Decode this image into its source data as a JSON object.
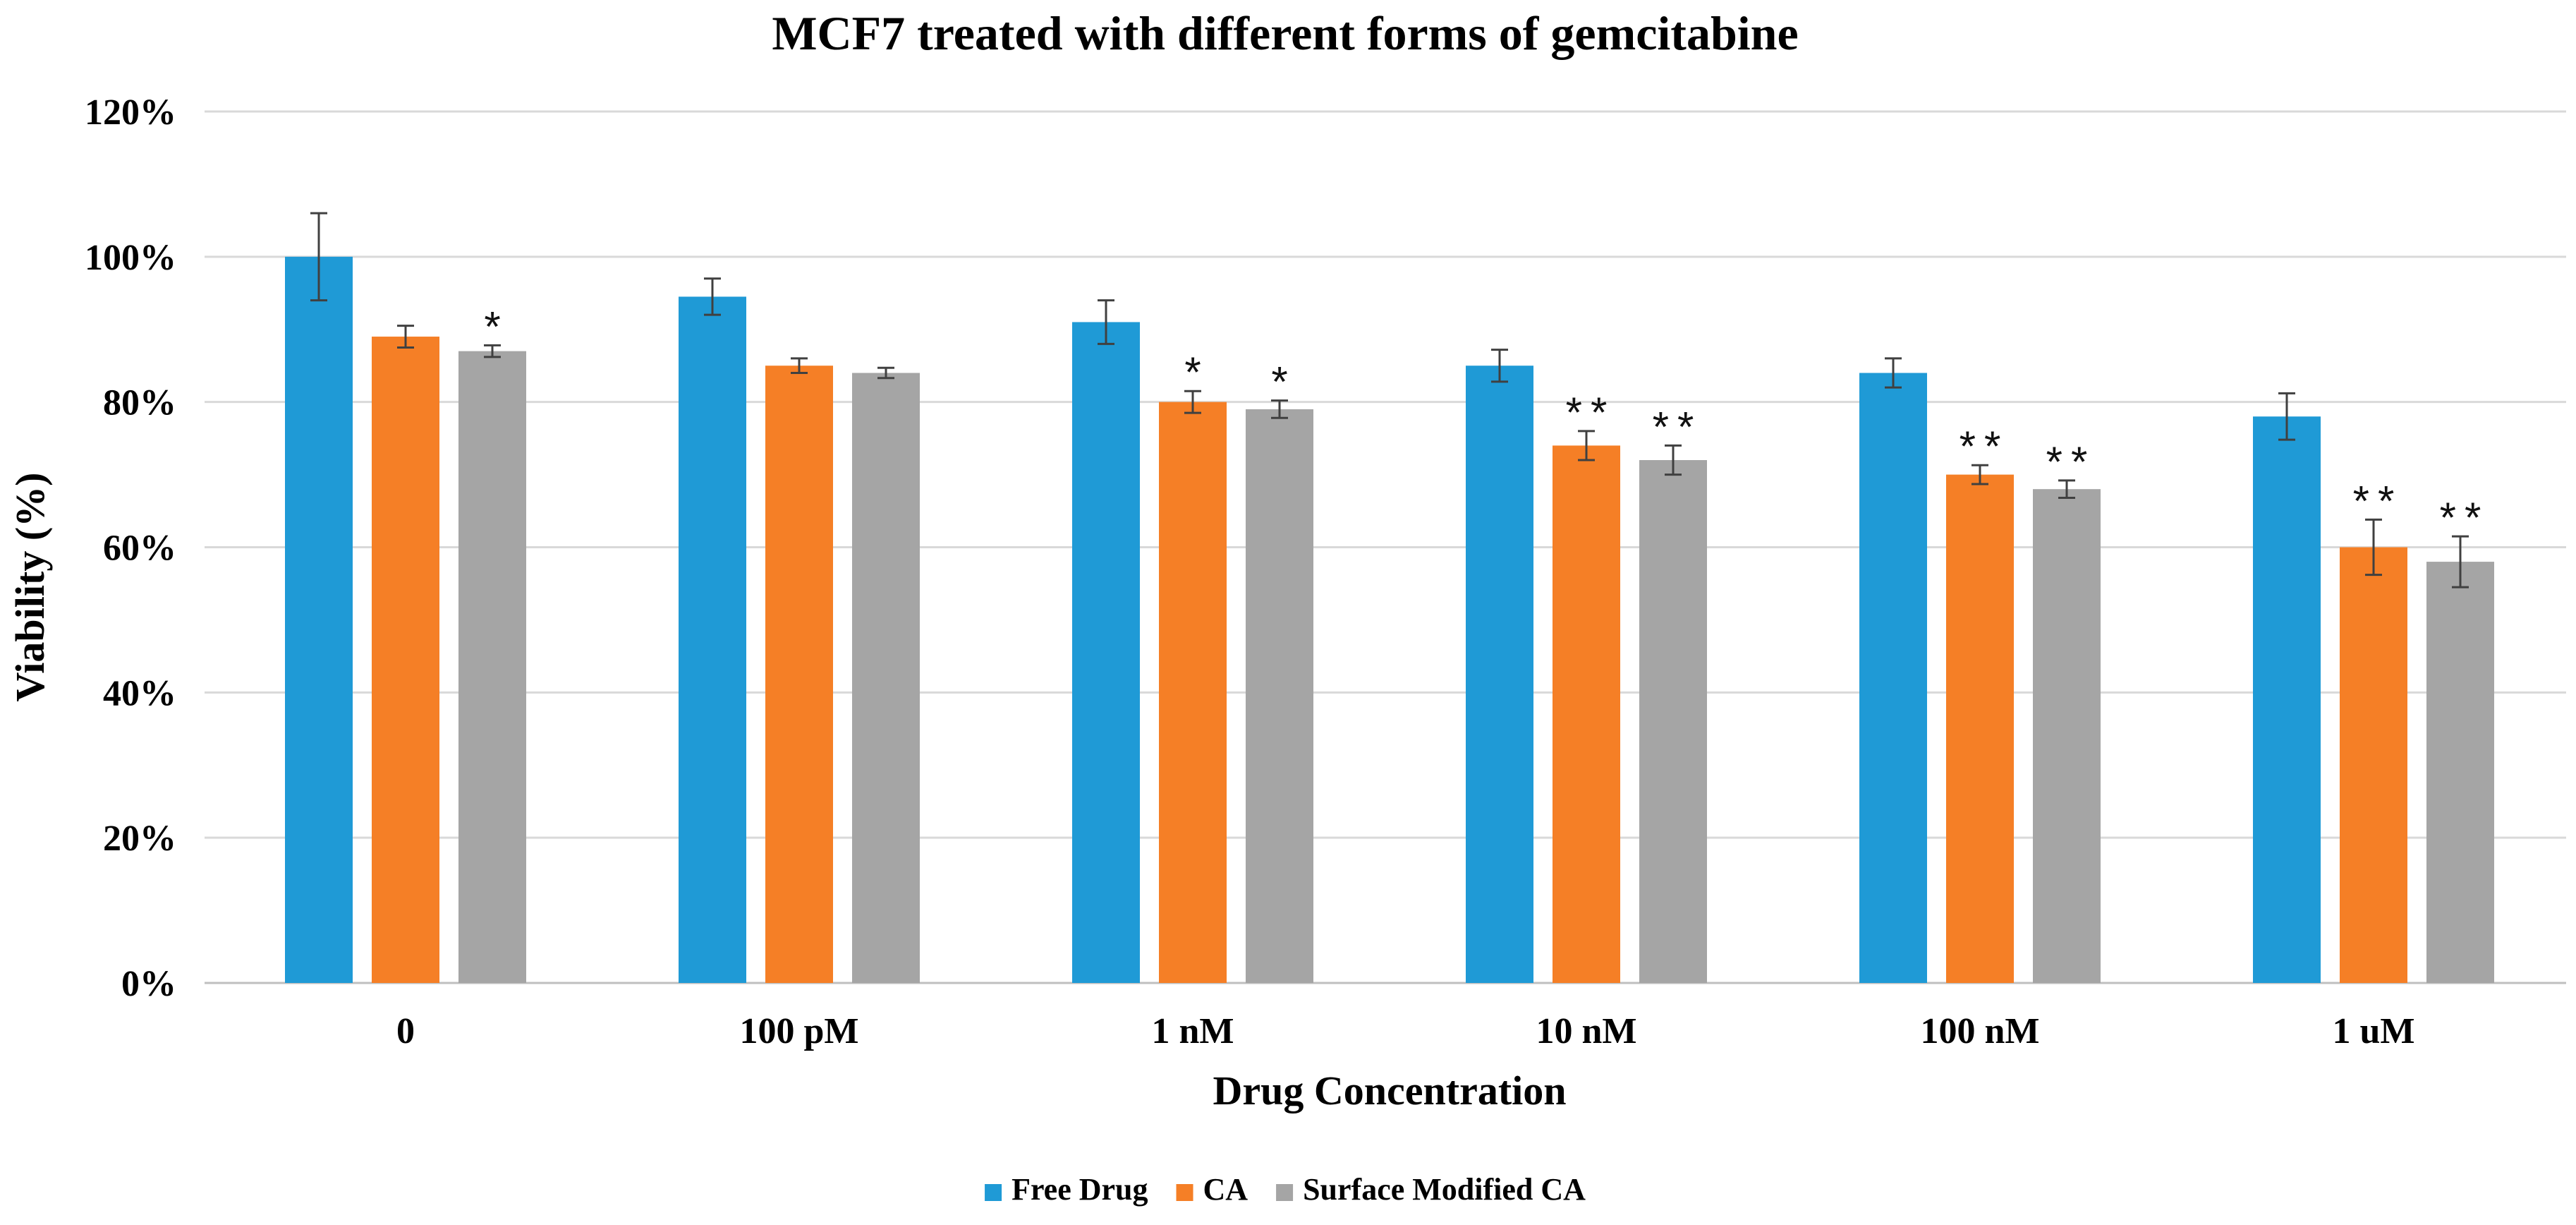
{
  "chart_data": {
    "type": "bar",
    "title": "MCF7 treated with different forms of gemcitabine",
    "xlabel": "Drug Concentration",
    "ylabel": "Viability  (%)",
    "categories": [
      "0",
      "100 pM",
      "1 nM",
      "10 nM",
      "100 nM",
      "1 uM"
    ],
    "ylim": [
      0,
      120
    ],
    "yticks": [
      0,
      20,
      40,
      60,
      80,
      100,
      120
    ],
    "ytick_labels": [
      "0%",
      "20%",
      "40%",
      "60%",
      "80%",
      "100%",
      "120%"
    ],
    "grid": true,
    "legend_position": "bottom",
    "series": [
      {
        "name": "Free Drug",
        "color": "#1f9ad6",
        "values": [
          100,
          94.5,
          91,
          85,
          84,
          78
        ],
        "errors": [
          6,
          2.5,
          3,
          2.2,
          2,
          3.2
        ],
        "significance": [
          "",
          "",
          "",
          "",
          "",
          ""
        ]
      },
      {
        "name": "CA",
        "color": "#f57f26",
        "values": [
          89,
          85,
          80,
          74,
          70,
          60
        ],
        "errors": [
          1.5,
          1,
          1.5,
          2,
          1.3,
          3.8
        ],
        "significance": [
          "",
          "",
          "*",
          "**",
          "**",
          "**"
        ]
      },
      {
        "name": "Surface Modified CA",
        "color": "#a5a5a5",
        "values": [
          87,
          84,
          79,
          72,
          68,
          58
        ],
        "errors": [
          0.8,
          0.7,
          1.2,
          2,
          1.2,
          3.5
        ],
        "significance": [
          "*",
          "",
          "*",
          "**",
          "**",
          "**"
        ]
      }
    ]
  }
}
